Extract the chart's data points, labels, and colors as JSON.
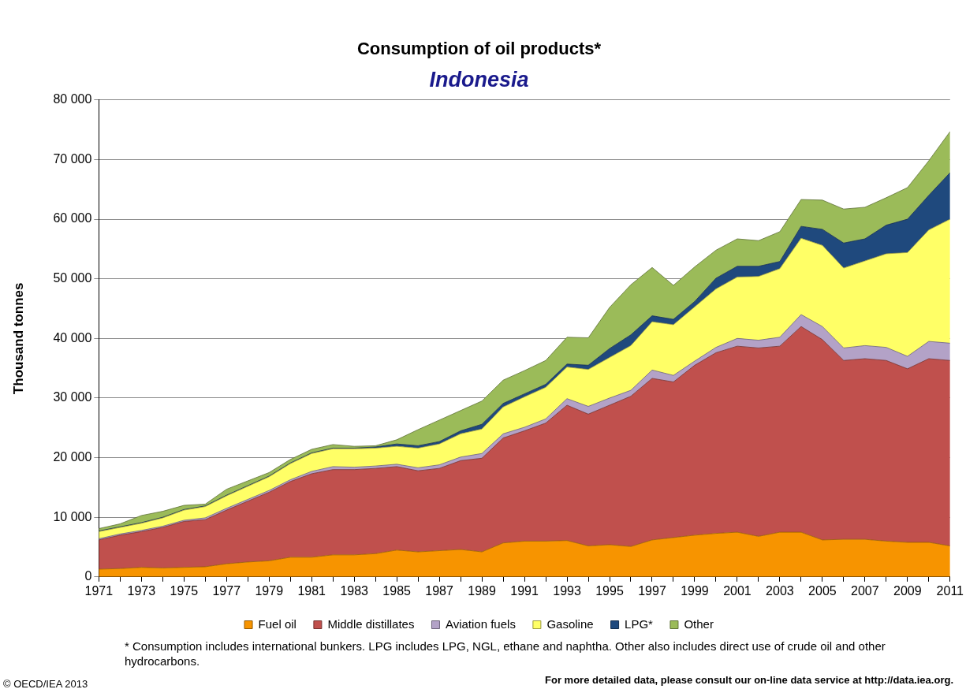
{
  "chart_data": {
    "type": "area",
    "title": "Consumption of oil products*",
    "subtitle": "Indonesia",
    "ylabel": "Thousand tonnes",
    "x": [
      1971,
      1972,
      1973,
      1974,
      1975,
      1976,
      1977,
      1978,
      1979,
      1980,
      1981,
      1982,
      1983,
      1984,
      1985,
      1986,
      1987,
      1988,
      1989,
      1990,
      1991,
      1992,
      1993,
      1994,
      1995,
      1996,
      1997,
      1998,
      1999,
      2000,
      2001,
      2002,
      2003,
      2004,
      2005,
      2006,
      2007,
      2008,
      2009,
      2010,
      2011
    ],
    "stacked": true,
    "marker": "none",
    "grid": "y",
    "legend": "bottom",
    "xlim": [
      1971,
      2011
    ],
    "xticks": [
      1971,
      {
        "value": 1972,
        "label": null
      },
      1973,
      {
        "value": 1974,
        "label": null
      },
      1975,
      {
        "value": 1976,
        "label": null
      },
      1977,
      {
        "value": 1978,
        "label": null
      },
      1979,
      {
        "value": 1980,
        "label": null
      },
      1981,
      {
        "value": 1982,
        "label": null
      },
      1983,
      {
        "value": 1984,
        "label": null
      },
      1985,
      {
        "value": 1986,
        "label": null
      },
      1987,
      {
        "value": 1988,
        "label": null
      },
      1989,
      {
        "value": 1990,
        "label": null
      },
      1991,
      {
        "value": 1992,
        "label": null
      },
      1993,
      {
        "value": 1994,
        "label": null
      },
      1995,
      {
        "value": 1996,
        "label": null
      },
      1997,
      {
        "value": 1998,
        "label": null
      },
      1999,
      {
        "value": 2000,
        "label": null
      },
      2001,
      {
        "value": 2002,
        "label": null
      },
      2003,
      {
        "value": 2004,
        "label": null
      },
      2005,
      {
        "value": 2006,
        "label": null
      },
      2007,
      {
        "value": 2008,
        "label": null
      },
      2009,
      {
        "value": 2010,
        "label": null
      },
      2011
    ],
    "ylim": [
      0,
      80000
    ],
    "yticks": [
      0,
      {
        "value": 10000,
        "label": "10 000"
      },
      {
        "value": 20000,
        "label": "20 000"
      },
      {
        "value": 30000,
        "label": "30 000"
      },
      {
        "value": 40000,
        "label": "40 000"
      },
      {
        "value": 50000,
        "label": "50 000"
      },
      {
        "value": 60000,
        "label": "60 000"
      },
      {
        "value": 70000,
        "label": "70 000"
      },
      {
        "value": 80000,
        "label": "80 000"
      }
    ],
    "series": [
      {
        "name": "Fuel oil",
        "color": "#f79400",
        "values": [
          1300,
          1400,
          1600,
          1500,
          1600,
          1700,
          2200,
          2500,
          2700,
          3300,
          3300,
          3700,
          3700,
          3900,
          4500,
          4200,
          4400,
          4600,
          4200,
          5700,
          6000,
          6000,
          6100,
          5200,
          5400,
          5100,
          6200,
          6600,
          7000,
          7300,
          7500,
          6800,
          7500,
          7500,
          6200,
          6300,
          6300,
          6000,
          5800,
          5800,
          5200
        ]
      },
      {
        "name": "Middle distillates",
        "color": "#c0504d",
        "values": [
          4900,
          5600,
          6000,
          6800,
          7700,
          7900,
          9000,
          10200,
          11500,
          12700,
          14000,
          14300,
          14300,
          14300,
          14000,
          13600,
          13800,
          14900,
          15700,
          17600,
          18500,
          19800,
          22700,
          22100,
          23400,
          25200,
          27100,
          26100,
          28500,
          30300,
          31200,
          31600,
          31200,
          34500,
          33600,
          30000,
          30300,
          30300,
          29100,
          30800,
          31100
        ]
      },
      {
        "name": "Aviation fuels",
        "color": "#b3a2c7",
        "values": [
          200,
          200,
          200,
          200,
          200,
          300,
          300,
          300,
          300,
          300,
          400,
          500,
          400,
          400,
          400,
          500,
          600,
          600,
          800,
          700,
          600,
          700,
          1100,
          1300,
          1200,
          1000,
          1400,
          1100,
          700,
          900,
          1300,
          1300,
          1500,
          2000,
          2200,
          2100,
          2200,
          2200,
          2100,
          2900,
          2900
        ]
      },
      {
        "name": "Gasoline",
        "color": "#ffff66",
        "values": [
          1200,
          1100,
          1200,
          1400,
          1700,
          1900,
          2100,
          2200,
          2300,
          2700,
          3000,
          3000,
          3100,
          3000,
          3000,
          3300,
          3500,
          3900,
          4100,
          4500,
          5100,
          5300,
          5300,
          6200,
          6800,
          7500,
          8100,
          8500,
          9100,
          9800,
          10300,
          10700,
          11500,
          12800,
          13600,
          13400,
          14200,
          15700,
          17400,
          18700,
          20800
        ]
      },
      {
        "name": "LPG*",
        "color": "#1f497d",
        "values": [
          100,
          100,
          100,
          100,
          100,
          100,
          100,
          100,
          100,
          100,
          100,
          100,
          100,
          200,
          400,
          400,
          400,
          500,
          800,
          600,
          500,
          500,
          500,
          700,
          1500,
          1800,
          1000,
          900,
          900,
          1800,
          1800,
          1700,
          1200,
          2000,
          2700,
          4200,
          3700,
          4800,
          5600,
          5800,
          7800
        ]
      },
      {
        "name": "Other",
        "color": "#9bbb59",
        "values": [
          400,
          500,
          1200,
          1000,
          700,
          300,
          1000,
          800,
          600,
          600,
          600,
          600,
          300,
          200,
          700,
          2700,
          3600,
          3400,
          3900,
          3900,
          3900,
          4000,
          4500,
          4600,
          6900,
          8400,
          8100,
          5700,
          5800,
          4700,
          4600,
          4300,
          5000,
          4500,
          4900,
          5700,
          5300,
          4600,
          5300,
          5800,
          6900
        ]
      }
    ],
    "annotations": [
      "* Consumption includes international bunkers. LPG includes LPG, NGL, ethane and naphtha. Other also includes direct use of crude oil and other hydrocarbons.",
      "© OECD/IEA 2013",
      "For more detailed data, please consult our on-line data service at http://data.iea.org."
    ]
  }
}
